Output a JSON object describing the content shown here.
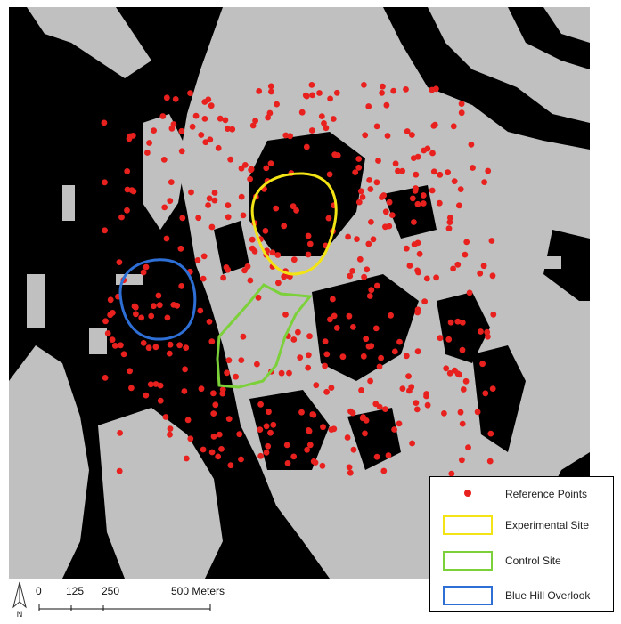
{
  "colors": {
    "background": "#000000",
    "terrain": "#c0c0c0",
    "reference_points": "#e8201e",
    "experimental_site": "#f2e415",
    "control_site": "#7cd13a",
    "blue_hill_overlook": "#2e6fd6"
  },
  "legend": {
    "items": [
      {
        "label": "Reference Points",
        "symbol": "dot"
      },
      {
        "label": "Experimental Site",
        "symbol": "rect"
      },
      {
        "label": "Control Site",
        "symbol": "rect"
      },
      {
        "label": "Blue Hill Overlook",
        "symbol": "rect"
      }
    ]
  },
  "scale": {
    "ticks": [
      "0",
      "125",
      "250",
      "500 Meters"
    ],
    "tick_values": [
      0,
      125,
      250,
      500
    ]
  },
  "north_arrow": {
    "label": "N",
    "icon": "north-arrow-icon"
  }
}
